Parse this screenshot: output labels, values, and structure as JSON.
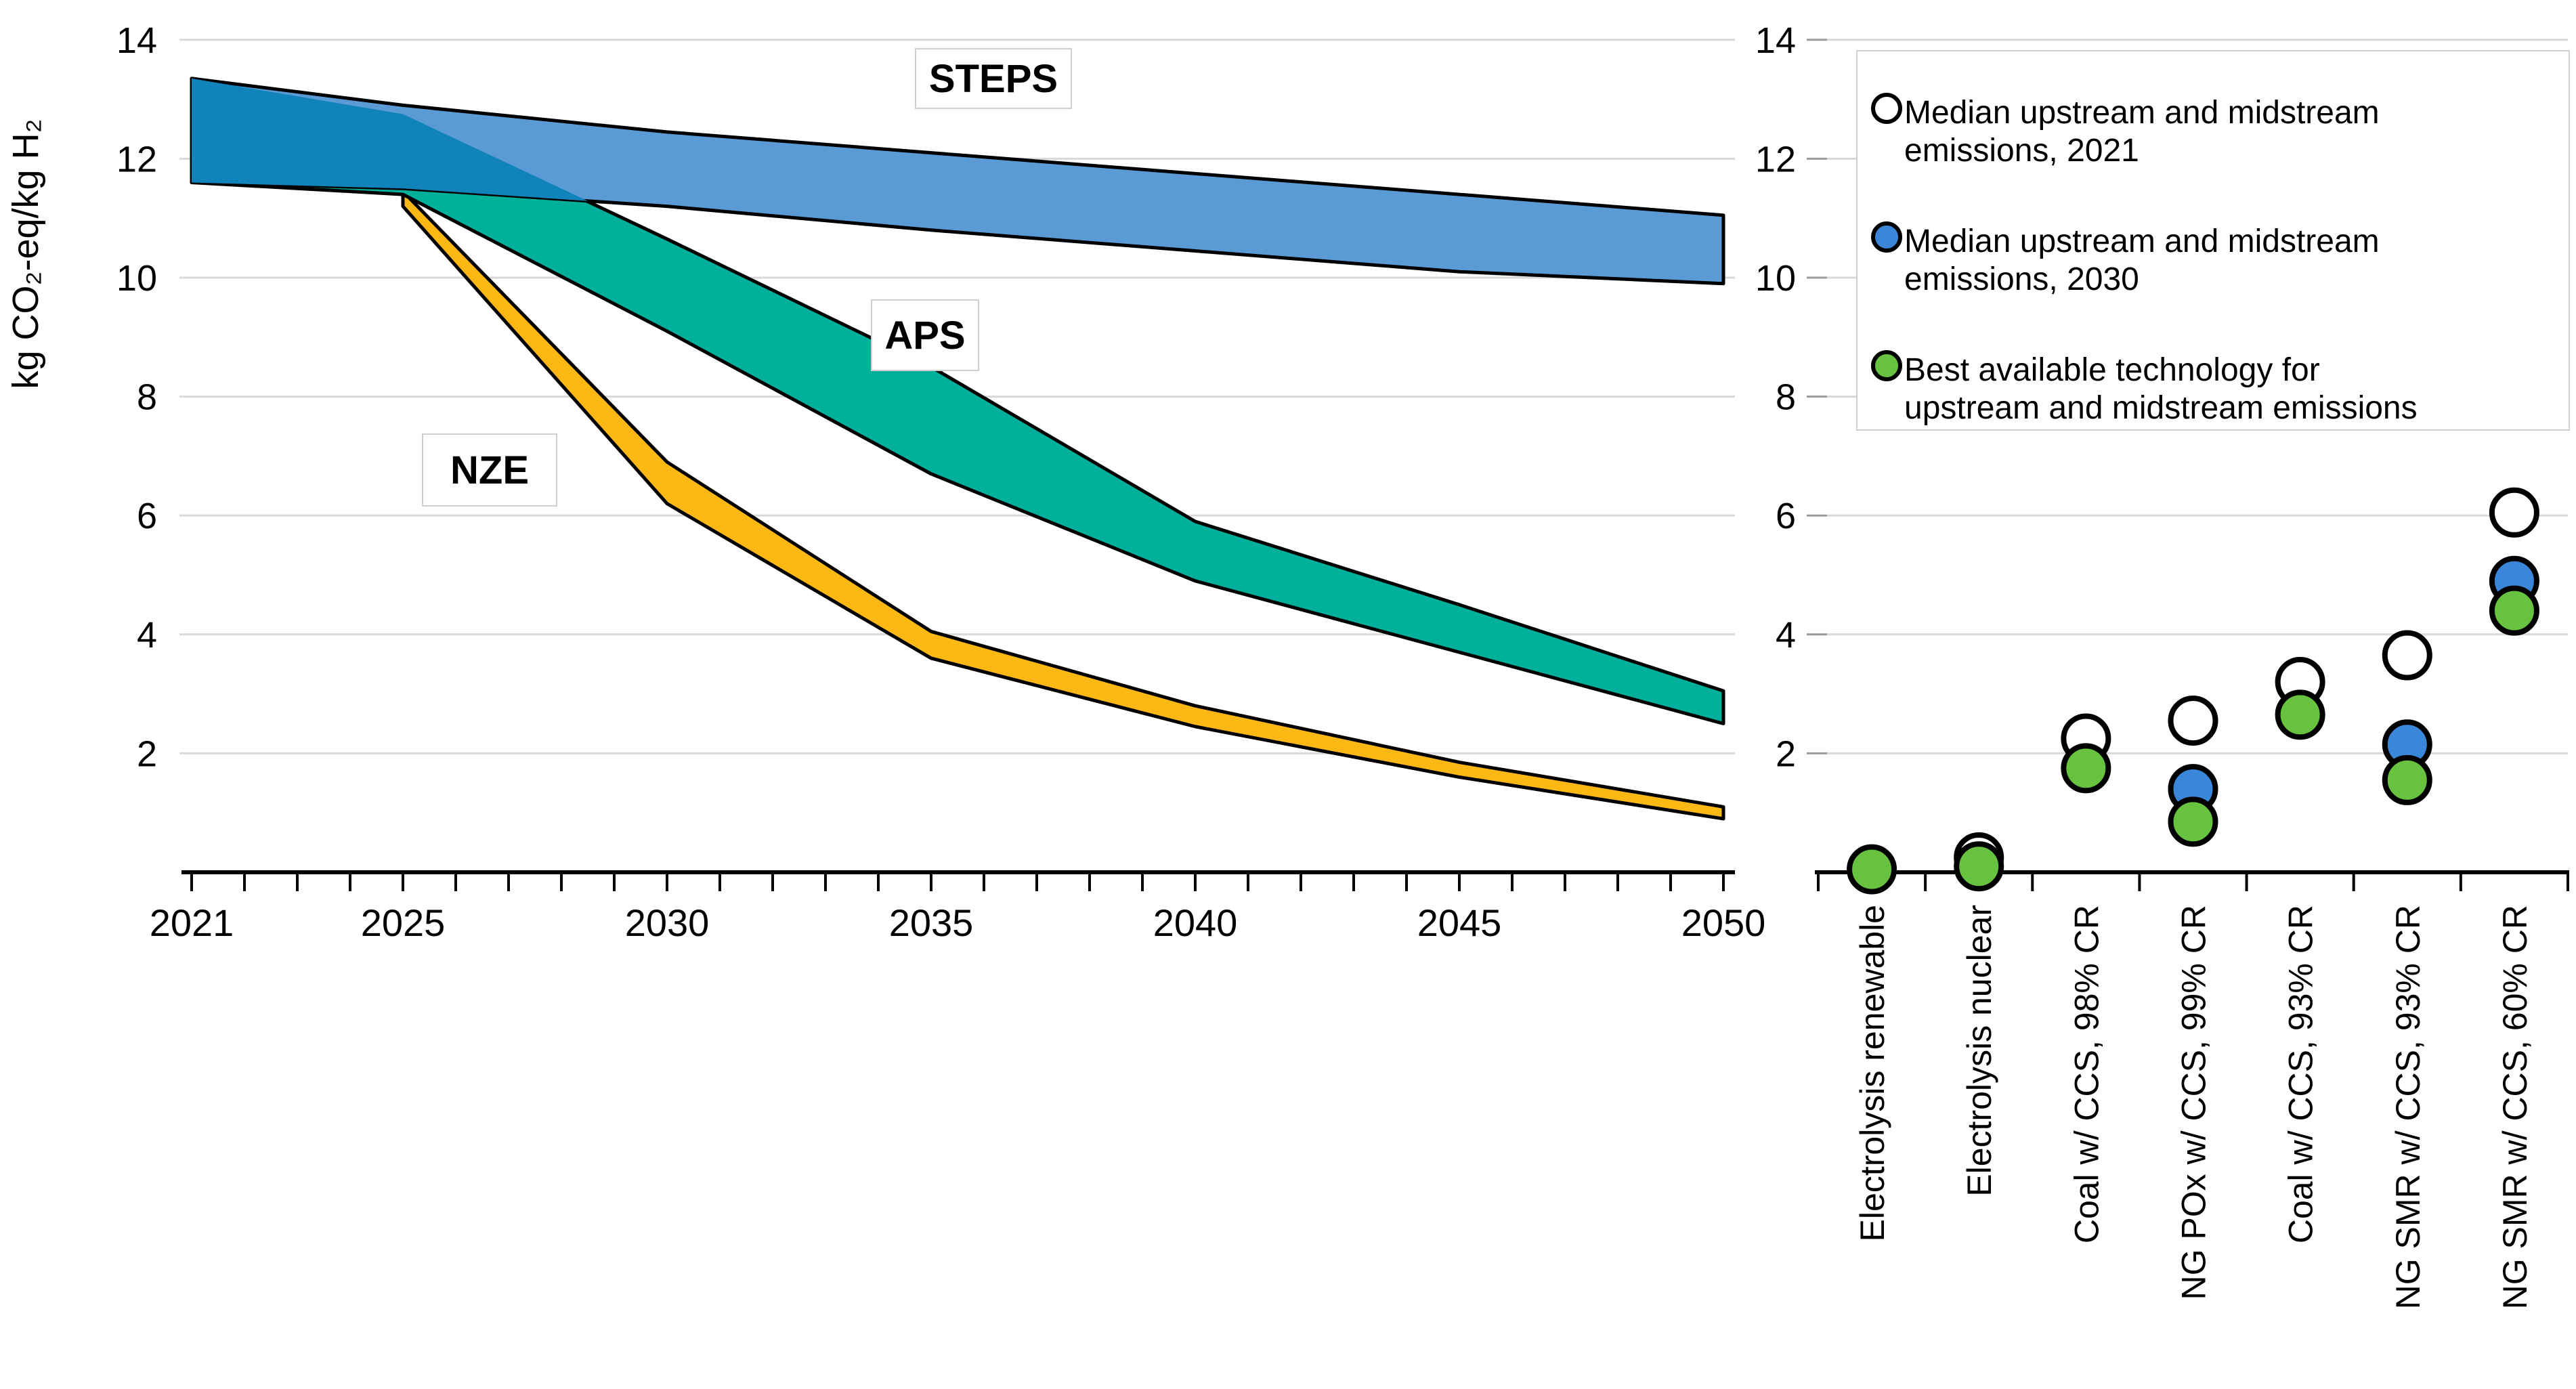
{
  "figure": {
    "background": "#ffffff",
    "axis_color": "#000000",
    "gridline_color": "#d9d9d9"
  },
  "chart_data": [
    {
      "type": "area",
      "title": "",
      "xlabel": "",
      "ylabel": "kg CO₂-eq/kg H₂",
      "xlim": [
        2021,
        2050
      ],
      "ylim": [
        0,
        14
      ],
      "yticks": [
        2,
        4,
        6,
        8,
        10,
        12,
        14
      ],
      "xticks_labeled": [
        2021,
        2025,
        2030,
        2035,
        2040,
        2045,
        2050
      ],
      "xticks_minor_every_year": true,
      "grid": "horizontal",
      "band_outline_color": "#000000",
      "overlap_fill": "#1183bb",
      "series": [
        {
          "name": "STEPS",
          "label_color": "#2e74c8",
          "fill": "#5b9bd5",
          "x": [
            2021,
            2025,
            2030,
            2035,
            2040,
            2045,
            2050
          ],
          "low": [
            11.6,
            11.5,
            11.2,
            10.8,
            10.45,
            10.1,
            9.9
          ],
          "high": [
            13.35,
            12.9,
            12.45,
            12.1,
            11.75,
            11.4,
            11.05
          ]
        },
        {
          "name": "APS",
          "label_color": "#00ab97",
          "fill": "#00b09b",
          "x": [
            2021,
            2025,
            2030,
            2035,
            2040,
            2045,
            2050
          ],
          "low": [
            11.6,
            11.4,
            9.1,
            6.7,
            4.9,
            3.7,
            2.5
          ],
          "high": [
            13.35,
            12.75,
            10.65,
            8.5,
            5.9,
            4.5,
            3.05
          ]
        },
        {
          "name": "NZE",
          "label_color": "#faa61a",
          "fill": "#fdb813",
          "x": [
            2025,
            2030,
            2035,
            2040,
            2045,
            2050
          ],
          "low": [
            11.2,
            6.2,
            3.6,
            2.45,
            1.6,
            0.9
          ],
          "high": [
            11.45,
            6.9,
            4.05,
            2.8,
            1.85,
            1.1
          ]
        }
      ]
    },
    {
      "type": "scatter",
      "title": "",
      "xlabel": "",
      "ylabel": "",
      "ylim": [
        0,
        14
      ],
      "yticks": [
        2,
        4,
        6,
        8,
        10,
        12,
        14
      ],
      "grid": "horizontal",
      "marker_outline": "#000000",
      "categories": [
        "Electrolysis renewable",
        "Electrolysis nuclear",
        "Coal w/ CCS, 98% CR",
        "NG POx w/ CCS, 99% CR",
        "Coal w/ CCS, 93% CR",
        "NG SMR w/ CCS, 93% CR",
        "NG SMR w/ CCS, 60% CR"
      ],
      "series": [
        {
          "name": "Median upstream and midstream emissions, 2021",
          "marker_fill": "#ffffff",
          "values": [
            null,
            0.25,
            2.25,
            2.55,
            3.2,
            3.65,
            6.05
          ]
        },
        {
          "name": "Median upstream and midstream emissions, 2030",
          "marker_fill": "#3a86d8",
          "values": [
            null,
            null,
            null,
            1.4,
            null,
            2.15,
            4.9
          ]
        },
        {
          "name": "Best available technology for upstream and midstream emissions",
          "marker_fill": "#66c23f",
          "values": [
            0.05,
            0.1,
            1.75,
            0.85,
            2.65,
            1.55,
            4.4
          ]
        }
      ],
      "legend": {
        "position": "top-right",
        "border_color": "#cfcfcf",
        "items": [
          {
            "marker_fill": "#ffffff",
            "lines": [
              "Median upstream and midstream",
              "emissions, 2021"
            ]
          },
          {
            "marker_fill": "#3a86d8",
            "lines": [
              "Median upstream and midstream",
              "emissions, 2030"
            ]
          },
          {
            "marker_fill": "#66c23f",
            "lines": [
              "Best available technology for",
              "upstream and midstream emissions"
            ]
          }
        ]
      }
    }
  ]
}
